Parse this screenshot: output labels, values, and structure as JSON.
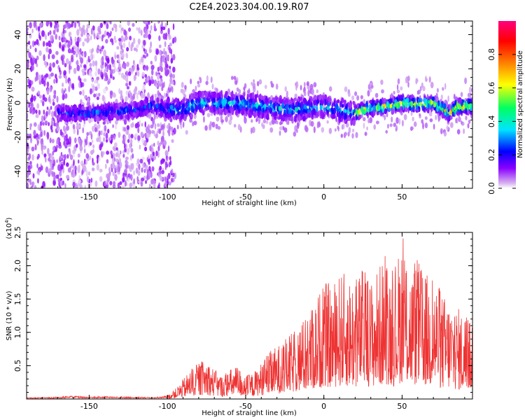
{
  "title": "C2E4.2023.304.00.19.R07",
  "chart_data": [
    {
      "type": "heatmap",
      "title": "C2E4.2023.304.00.19.R07",
      "xlabel": "Height of straight line (km)",
      "ylabel": "Frequency (Hz)",
      "xlim": [
        -190,
        95
      ],
      "ylim": [
        -50,
        48
      ],
      "xticks": [
        -150,
        -100,
        -50,
        0,
        50
      ],
      "yticks": [
        -40,
        -20,
        0,
        20,
        40
      ],
      "grid": false,
      "colorbar": {
        "label": "Normalized spectral amplitude",
        "range": [
          0.0,
          1.0
        ],
        "ticks": [
          0.0,
          0.2,
          0.4,
          0.6,
          0.8
        ],
        "colors": [
          "#ffffff",
          "#d8b4f0",
          "#8a00ff",
          "#0000ff",
          "#00e5ff",
          "#00ff60",
          "#ffff00",
          "#ff7f00",
          "#ff0000",
          "#ff007f"
        ]
      },
      "ridge": {
        "x": [
          -160,
          -150,
          -140,
          -130,
          -120,
          -110,
          -100,
          -90,
          -80,
          -70,
          -60,
          -50,
          -40,
          -30,
          -20,
          -10,
          0,
          10,
          20,
          25,
          30,
          40,
          50,
          60,
          70,
          75,
          80,
          85,
          90,
          95
        ],
        "y": [
          -6,
          -6,
          -5,
          -5,
          -4,
          -1,
          -4,
          -4,
          0,
          0,
          0,
          -1,
          -2,
          -3,
          -4,
          -3,
          -2,
          -4,
          -6,
          -4,
          -3,
          -2,
          0,
          -1,
          0,
          -3,
          -6,
          -2,
          -2,
          -2
        ]
      }
    },
    {
      "type": "line",
      "xlabel": "Height of straight line (km)",
      "ylabel": "SNR (10 * v/v)",
      "y_multiplier": "(x10^4)",
      "xlim": [
        -190,
        95
      ],
      "ylim": [
        0,
        2.5
      ],
      "xticks": [
        -150,
        -100,
        -50,
        0,
        50
      ],
      "yticks": [
        0.5,
        1.0,
        1.5,
        2.0,
        2.5
      ],
      "ytick_labels": [
        "0.5",
        "1.0",
        "1.5",
        "2.0",
        "2.5"
      ],
      "grid": false,
      "color": "#ee3333",
      "envelope": {
        "x": [
          -190,
          -170,
          -160,
          -150,
          -140,
          -120,
          -105,
          -100,
          -95,
          -90,
          -85,
          -80,
          -75,
          -70,
          -65,
          -60,
          -55,
          -50,
          -45,
          -40,
          -35,
          -30,
          -25,
          -20,
          -15,
          -10,
          -5,
          0,
          5,
          10,
          15,
          20,
          25,
          30,
          35,
          40,
          45,
          50,
          55,
          60,
          65,
          70,
          75,
          80,
          85,
          90,
          95
        ],
        "y": [
          0.02,
          0.03,
          0.05,
          0.03,
          0.04,
          0.03,
          0.03,
          0.05,
          0.15,
          0.3,
          0.45,
          0.55,
          0.6,
          0.45,
          0.35,
          0.45,
          0.5,
          0.35,
          0.4,
          0.55,
          0.7,
          0.8,
          0.9,
          1.0,
          1.15,
          1.3,
          1.5,
          1.8,
          1.7,
          1.9,
          1.9,
          1.8,
          2.0,
          1.8,
          2.0,
          2.2,
          1.9,
          2.5,
          2.0,
          2.1,
          1.9,
          1.9,
          1.6,
          1.5,
          1.4,
          1.3,
          1.3
        ]
      }
    }
  ]
}
